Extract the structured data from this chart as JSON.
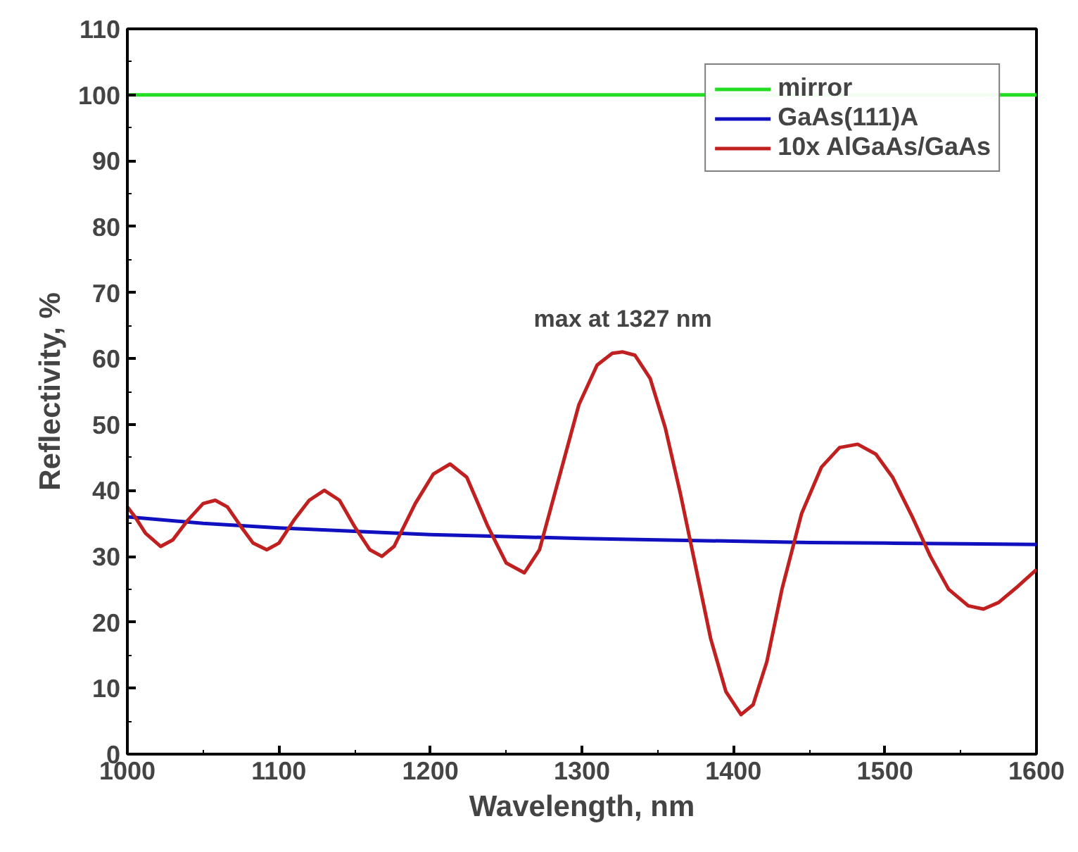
{
  "chart_data": {
    "type": "line",
    "xlabel": "Wavelength, nm",
    "ylabel": "Reflectivity, %",
    "xlim": [
      1000,
      1600
    ],
    "ylim": [
      0,
      110
    ],
    "xticks": [
      1000,
      1100,
      1200,
      1300,
      1400,
      1500,
      1600
    ],
    "yticks": [
      0,
      10,
      20,
      30,
      40,
      50,
      60,
      70,
      80,
      90,
      100,
      110
    ],
    "grid": false,
    "legend": "top right",
    "line_style": "solid",
    "marker": "none",
    "annotations": [
      {
        "text": "max at 1327 nm",
        "x": 1327,
        "y": 61
      }
    ],
    "series": [
      {
        "name": "mirror",
        "color": "#22dd22",
        "x": [
          1000,
          1600
        ],
        "values": [
          100,
          100
        ]
      },
      {
        "name": "GaAs(111)A",
        "color": "#1010c0",
        "x": [
          1000,
          1050,
          1100,
          1150,
          1200,
          1250,
          1300,
          1350,
          1400,
          1450,
          1500,
          1550,
          1600
        ],
        "values": [
          36,
          35,
          34.3,
          33.8,
          33.3,
          33,
          32.7,
          32.5,
          32.3,
          32.1,
          32,
          31.9,
          31.8
        ]
      },
      {
        "name": "10x AlGaAs/GaAs",
        "color": "#c02020",
        "x": [
          1000,
          1005,
          1012,
          1022,
          1030,
          1040,
          1050,
          1058,
          1066,
          1075,
          1083,
          1092,
          1100,
          1110,
          1120,
          1130,
          1140,
          1150,
          1160,
          1168,
          1176,
          1190,
          1202,
          1213,
          1224,
          1238,
          1250,
          1262,
          1272,
          1285,
          1298,
          1310,
          1320,
          1327,
          1335,
          1345,
          1355,
          1365,
          1375,
          1385,
          1395,
          1405,
          1413,
          1422,
          1432,
          1445,
          1458,
          1470,
          1482,
          1494,
          1505,
          1518,
          1530,
          1542,
          1555,
          1565,
          1575,
          1588,
          1600
        ],
        "values": [
          37.5,
          36,
          33.5,
          31.5,
          32.5,
          35.5,
          38,
          38.5,
          37.5,
          34.5,
          32,
          31,
          32,
          35.5,
          38.5,
          40,
          38.5,
          34.5,
          31,
          30,
          31.5,
          38,
          42.5,
          44,
          42,
          34.5,
          29,
          27.5,
          31,
          42,
          53,
          59,
          60.8,
          61,
          60.5,
          57,
          49.5,
          39.5,
          28.5,
          17.5,
          9.5,
          6,
          7.5,
          14,
          25,
          36.5,
          43.5,
          46.5,
          47,
          45.5,
          42,
          36,
          30,
          25,
          22.5,
          22,
          23,
          25.5,
          28
        ]
      }
    ]
  }
}
